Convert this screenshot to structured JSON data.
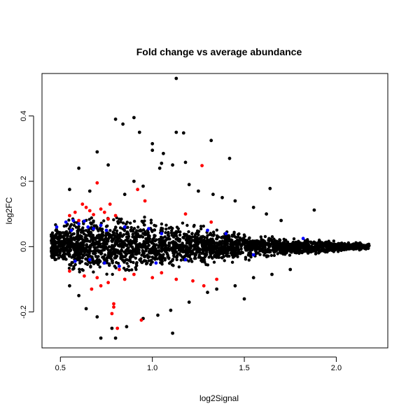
{
  "chart_data": {
    "type": "scatter",
    "title": "Fold change vs average abundance",
    "xlabel": "log2Signal",
    "ylabel": "log2FC",
    "xlim": [
      0.4,
      2.28
    ],
    "ylim": [
      -0.31,
      0.53
    ],
    "x_ticks": [
      0.5,
      1.0,
      1.5,
      2.0
    ],
    "x_tick_labels": [
      "0.5",
      "1.0",
      "1.5",
      "2.0"
    ],
    "y_ticks": [
      -0.2,
      0.0,
      0.2,
      0.4
    ],
    "y_tick_labels": [
      "-0.2",
      "0.0",
      "0.2",
      "0.4"
    ],
    "grid": false,
    "legend": "none",
    "series_colors": {
      "main": "#000000",
      "significant": "#ff0000",
      "highlighted": "#0000ff"
    },
    "density_envelope": [
      {
        "x": 0.45,
        "hi": 0.075,
        "lo": -0.05
      },
      {
        "x": 0.55,
        "hi": 0.11,
        "lo": -0.09
      },
      {
        "x": 0.7,
        "hi": 0.12,
        "lo": -0.11
      },
      {
        "x": 0.9,
        "hi": 0.11,
        "lo": -0.1
      },
      {
        "x": 1.1,
        "hi": 0.09,
        "lo": -0.08
      },
      {
        "x": 1.3,
        "hi": 0.07,
        "lo": -0.065
      },
      {
        "x": 1.5,
        "hi": 0.05,
        "lo": -0.05
      },
      {
        "x": 1.7,
        "hi": 0.035,
        "lo": -0.035
      },
      {
        "x": 1.9,
        "hi": 0.025,
        "lo": -0.025
      },
      {
        "x": 2.18,
        "hi": 0.012,
        "lo": -0.012
      }
    ],
    "series": [
      {
        "name": "",
        "color": "#000000",
        "points": [
          [
            1.13,
            0.515
          ],
          [
            0.8,
            0.39
          ],
          [
            0.84,
            0.375
          ],
          [
            0.9,
            0.395
          ],
          [
            0.93,
            0.35
          ],
          [
            1.13,
            0.35
          ],
          [
            1.17,
            0.348
          ],
          [
            1.32,
            0.325
          ],
          [
            0.7,
            0.29
          ],
          [
            1.0,
            0.315
          ],
          [
            1.0,
            0.295
          ],
          [
            1.06,
            0.285
          ],
          [
            1.11,
            0.25
          ],
          [
            1.18,
            0.258
          ],
          [
            1.05,
            0.255
          ],
          [
            1.04,
            0.24
          ],
          [
            1.42,
            0.27
          ],
          [
            0.6,
            0.24
          ],
          [
            0.76,
            0.25
          ],
          [
            0.55,
            0.175
          ],
          [
            1.64,
            0.178
          ],
          [
            1.88,
            0.112
          ],
          [
            0.9,
            0.2
          ],
          [
            0.95,
            0.185
          ],
          [
            1.2,
            0.19
          ],
          [
            1.25,
            0.17
          ],
          [
            1.33,
            0.16
          ],
          [
            1.38,
            0.15
          ],
          [
            1.45,
            0.14
          ],
          [
            1.55,
            0.12
          ],
          [
            1.62,
            0.1
          ],
          [
            1.7,
            0.08
          ],
          [
            0.66,
            0.17
          ],
          [
            0.85,
            0.16
          ],
          [
            0.72,
            -0.28
          ],
          [
            0.8,
            -0.28
          ],
          [
            1.11,
            -0.265
          ],
          [
            0.64,
            -0.19
          ],
          [
            0.86,
            -0.245
          ],
          [
            0.78,
            -0.25
          ],
          [
            0.95,
            -0.22
          ],
          [
            0.7,
            -0.215
          ],
          [
            1.03,
            -0.21
          ],
          [
            1.5,
            -0.16
          ],
          [
            1.2,
            -0.17
          ],
          [
            1.3,
            -0.14
          ],
          [
            0.6,
            -0.15
          ],
          [
            1.1,
            -0.195
          ],
          [
            1.35,
            -0.13
          ],
          [
            1.45,
            -0.12
          ],
          [
            1.55,
            -0.095
          ],
          [
            1.65,
            -0.085
          ],
          [
            1.75,
            -0.07
          ],
          [
            0.55,
            -0.12
          ]
        ]
      },
      {
        "name": "",
        "color": "#ff0000",
        "points": [
          [
            0.7,
            0.195
          ],
          [
            0.62,
            0.13
          ],
          [
            0.64,
            0.12
          ],
          [
            0.72,
            0.115
          ],
          [
            0.74,
            0.105
          ],
          [
            0.58,
            0.105
          ],
          [
            0.55,
            0.095
          ],
          [
            0.66,
            0.11
          ],
          [
            0.8,
            0.095
          ],
          [
            0.77,
            0.13
          ],
          [
            0.92,
            0.175
          ],
          [
            0.96,
            0.14
          ],
          [
            1.27,
            0.248
          ],
          [
            1.32,
            0.075
          ],
          [
            1.18,
            0.1
          ],
          [
            0.68,
            0.098
          ],
          [
            0.6,
            0.08
          ],
          [
            0.76,
            0.085
          ],
          [
            0.79,
            -0.175
          ],
          [
            0.79,
            -0.185
          ],
          [
            0.78,
            -0.205
          ],
          [
            0.81,
            -0.25
          ],
          [
            0.94,
            -0.225
          ],
          [
            0.67,
            -0.13
          ],
          [
            0.72,
            -0.12
          ],
          [
            0.76,
            -0.11
          ],
          [
            0.7,
            -0.095
          ],
          [
            0.85,
            -0.1
          ],
          [
            1.0,
            -0.095
          ],
          [
            1.13,
            -0.1
          ],
          [
            1.22,
            -0.105
          ],
          [
            1.28,
            -0.12
          ],
          [
            1.35,
            -0.1
          ],
          [
            0.55,
            -0.075
          ],
          [
            0.82,
            -0.07
          ],
          [
            0.9,
            -0.085
          ],
          [
            1.05,
            -0.08
          ],
          [
            0.63,
            -0.09
          ]
        ]
      },
      {
        "name": "",
        "color": "#0000ff",
        "points": [
          [
            0.48,
            0.06
          ],
          [
            0.53,
            0.075
          ],
          [
            0.56,
            0.05
          ],
          [
            0.6,
            0.07
          ],
          [
            0.65,
            0.06
          ],
          [
            0.68,
            0.055
          ],
          [
            0.72,
            0.065
          ],
          [
            0.75,
            0.05
          ],
          [
            0.63,
            0.078
          ],
          [
            0.57,
            0.08
          ],
          [
            0.85,
            0.06
          ],
          [
            0.98,
            0.055
          ],
          [
            1.05,
            0.04
          ],
          [
            1.3,
            0.05
          ],
          [
            1.4,
            0.04
          ],
          [
            1.82,
            0.025
          ],
          [
            0.58,
            -0.045
          ],
          [
            0.66,
            -0.04
          ],
          [
            0.74,
            -0.05
          ],
          [
            0.82,
            -0.06
          ],
          [
            1.02,
            -0.05
          ],
          [
            1.18,
            -0.04
          ],
          [
            1.55,
            -0.025
          ]
        ]
      }
    ]
  }
}
